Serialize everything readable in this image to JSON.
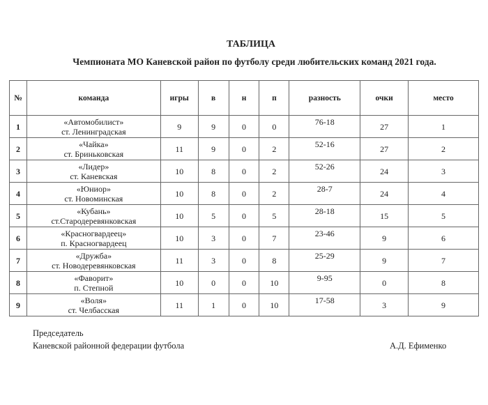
{
  "title": "ТАБЛИЦА",
  "subtitle": "Чемпионата МО Каневской район по футболу среди любительских команд 2021 года.",
  "headers": [
    "№",
    "команда",
    "игры",
    "в",
    "н",
    "п",
    "разность",
    "очки",
    "место"
  ],
  "rows": [
    {
      "n": "1",
      "team": "«Автомобилист»",
      "place": "ст. Ленинградская",
      "games": "9",
      "w": "9",
      "d": "0",
      "l": "0",
      "diff": "76-18",
      "pts": "27",
      "rank": "1"
    },
    {
      "n": "2",
      "team": "«Чайка»",
      "place": "ст. Бриньковская",
      "games": "11",
      "w": "9",
      "d": "0",
      "l": "2",
      "diff": "52-16",
      "pts": "27",
      "rank": "2"
    },
    {
      "n": "3",
      "team": "«Лидер»",
      "place": "ст. Каневская",
      "games": "10",
      "w": "8",
      "d": "0",
      "l": "2",
      "diff": "52-26",
      "pts": "24",
      "rank": "3"
    },
    {
      "n": "4",
      "team": "«Юниор»",
      "place": "ст. Новоминская",
      "games": "10",
      "w": "8",
      "d": "0",
      "l": "2",
      "diff": "28-7",
      "pts": "24",
      "rank": "4"
    },
    {
      "n": "5",
      "team": "«Кубань»",
      "place": "ст.Стародеревянковская",
      "games": "10",
      "w": "5",
      "d": "0",
      "l": "5",
      "diff": "28-18",
      "pts": "15",
      "rank": "5"
    },
    {
      "n": "6",
      "team": "«Красногвардеец»",
      "place": "п. Красногвардеец",
      "games": "10",
      "w": "3",
      "d": "0",
      "l": "7",
      "diff": "23-46",
      "pts": "9",
      "rank": "6"
    },
    {
      "n": "7",
      "team": "«Дружба»",
      "place": "ст. Новодеревянковская",
      "games": "11",
      "w": "3",
      "d": "0",
      "l": "8",
      "diff": "25-29",
      "pts": "9",
      "rank": "7"
    },
    {
      "n": "8",
      "team": "«Фаворит»",
      "place": "п. Степной",
      "games": "10",
      "w": "0",
      "d": "0",
      "l": "10",
      "diff": "9-95",
      "pts": "0",
      "rank": "8"
    },
    {
      "n": "9",
      "team": "«Воля»",
      "place": "ст. Челбасская",
      "games": "11",
      "w": "1",
      "d": "0",
      "l": "10",
      "diff": "17-58",
      "pts": "3",
      "rank": "9"
    }
  ],
  "footer": {
    "line1": "Председатель",
    "line2": "Каневской районной федерации футбола",
    "signer": "А.Д. Ефименко"
  }
}
